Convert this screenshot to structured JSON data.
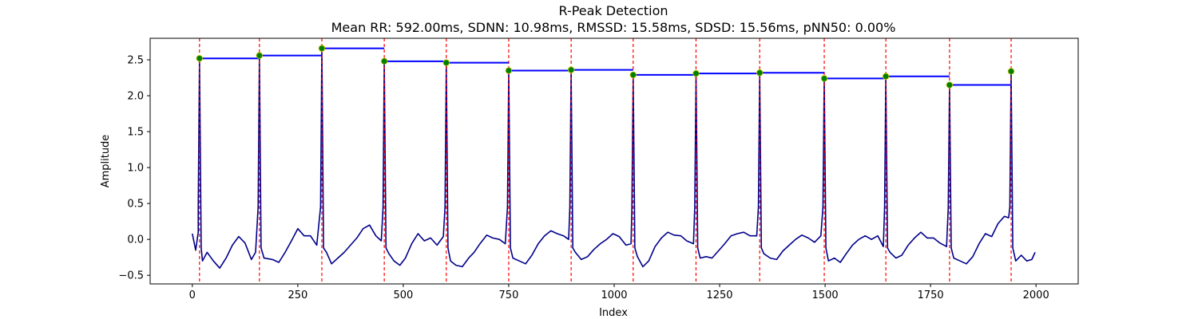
{
  "chart_data": {
    "type": "line",
    "title": "R-Peak Detection",
    "subtitle": "Mean RR: 592.00ms, SDNN: 10.98ms, RMSSD: 15.58ms, SDSD: 15.56ms, pNN50: 0.00%",
    "xlabel": "Index",
    "ylabel": "Amplitude",
    "xlim": [
      -100,
      2100
    ],
    "ylim": [
      -0.62,
      2.8
    ],
    "x_ticks": [
      0,
      250,
      500,
      750,
      1000,
      1250,
      1500,
      1750,
      2000
    ],
    "x_tick_labels": [
      "0",
      "250",
      "500",
      "750",
      "1000",
      "1250",
      "1500",
      "1750",
      "2000"
    ],
    "y_ticks": [
      -0.5,
      0.0,
      0.5,
      1.0,
      1.5,
      2.0,
      2.5
    ],
    "y_tick_labels": [
      "−0.5",
      "0.0",
      "0.5",
      "1.0",
      "1.5",
      "2.0",
      "2.5"
    ],
    "grid": false,
    "colors": {
      "signal": "#00008b",
      "peak_line": "#ff0000",
      "peak_marker": "#008000",
      "rr_bar": "#0000ff"
    },
    "peaks": {
      "x": [
        17,
        159,
        307,
        455,
        602,
        750,
        898,
        1045,
        1194,
        1345,
        1498,
        1644,
        1795,
        1941
      ],
      "y": [
        2.52,
        2.56,
        2.66,
        2.48,
        2.46,
        2.35,
        2.36,
        2.29,
        2.31,
        2.32,
        2.24,
        2.27,
        2.15,
        2.34
      ]
    },
    "signal_baseline": [
      [
        0,
        0.08
      ],
      [
        8,
        -0.15
      ],
      [
        14,
        0.1
      ],
      [
        24,
        -0.3
      ],
      [
        35,
        -0.18
      ],
      [
        50,
        -0.3
      ],
      [
        65,
        -0.4
      ],
      [
        80,
        -0.26
      ],
      [
        95,
        -0.08
      ],
      [
        110,
        0.04
      ],
      [
        125,
        -0.05
      ],
      [
        140,
        -0.28
      ],
      [
        150,
        -0.18
      ],
      [
        170,
        -0.26
      ],
      [
        190,
        -0.28
      ],
      [
        205,
        -0.32
      ],
      [
        220,
        -0.18
      ],
      [
        235,
        -0.02
      ],
      [
        250,
        0.15
      ],
      [
        265,
        0.05
      ],
      [
        280,
        0.05
      ],
      [
        295,
        -0.08
      ],
      [
        318,
        -0.18
      ],
      [
        330,
        -0.34
      ],
      [
        345,
        -0.26
      ],
      [
        360,
        -0.18
      ],
      [
        375,
        -0.08
      ],
      [
        390,
        0.02
      ],
      [
        405,
        0.15
      ],
      [
        420,
        0.2
      ],
      [
        435,
        0.05
      ],
      [
        448,
        -0.02
      ],
      [
        466,
        -0.2
      ],
      [
        478,
        -0.3
      ],
      [
        492,
        -0.36
      ],
      [
        505,
        -0.26
      ],
      [
        520,
        -0.06
      ],
      [
        535,
        0.08
      ],
      [
        550,
        -0.02
      ],
      [
        565,
        0.02
      ],
      [
        580,
        -0.08
      ],
      [
        595,
        0.04
      ],
      [
        612,
        -0.3
      ],
      [
        625,
        -0.36
      ],
      [
        640,
        -0.38
      ],
      [
        655,
        -0.26
      ],
      [
        668,
        -0.18
      ],
      [
        682,
        -0.06
      ],
      [
        698,
        0.06
      ],
      [
        712,
        0.02
      ],
      [
        728,
        0.0
      ],
      [
        742,
        -0.06
      ],
      [
        760,
        -0.26
      ],
      [
        775,
        -0.3
      ],
      [
        790,
        -0.34
      ],
      [
        805,
        -0.22
      ],
      [
        820,
        -0.06
      ],
      [
        835,
        0.05
      ],
      [
        850,
        0.12
      ],
      [
        865,
        0.08
      ],
      [
        880,
        0.05
      ],
      [
        892,
        0.0
      ],
      [
        908,
        -0.18
      ],
      [
        922,
        -0.28
      ],
      [
        937,
        -0.24
      ],
      [
        952,
        -0.14
      ],
      [
        967,
        -0.06
      ],
      [
        982,
        0.0
      ],
      [
        997,
        0.08
      ],
      [
        1012,
        0.04
      ],
      [
        1028,
        -0.08
      ],
      [
        1040,
        -0.06
      ],
      [
        1055,
        -0.24
      ],
      [
        1068,
        -0.38
      ],
      [
        1082,
        -0.3
      ],
      [
        1097,
        -0.1
      ],
      [
        1112,
        0.02
      ],
      [
        1127,
        0.1
      ],
      [
        1142,
        0.06
      ],
      [
        1158,
        0.05
      ],
      [
        1172,
        -0.02
      ],
      [
        1188,
        -0.06
      ],
      [
        1204,
        -0.26
      ],
      [
        1218,
        -0.24
      ],
      [
        1232,
        -0.26
      ],
      [
        1247,
        -0.16
      ],
      [
        1262,
        -0.06
      ],
      [
        1277,
        0.05
      ],
      [
        1292,
        0.08
      ],
      [
        1307,
        0.1
      ],
      [
        1322,
        0.05
      ],
      [
        1338,
        0.05
      ],
      [
        1355,
        -0.2
      ],
      [
        1370,
        -0.26
      ],
      [
        1385,
        -0.28
      ],
      [
        1400,
        -0.16
      ],
      [
        1415,
        -0.08
      ],
      [
        1430,
        0.0
      ],
      [
        1445,
        0.06
      ],
      [
        1460,
        0.02
      ],
      [
        1475,
        -0.04
      ],
      [
        1490,
        0.05
      ],
      [
        1508,
        -0.3
      ],
      [
        1522,
        -0.26
      ],
      [
        1536,
        -0.32
      ],
      [
        1550,
        -0.2
      ],
      [
        1565,
        -0.08
      ],
      [
        1580,
        0.0
      ],
      [
        1595,
        0.05
      ],
      [
        1610,
        0.0
      ],
      [
        1625,
        0.05
      ],
      [
        1638,
        -0.1
      ],
      [
        1654,
        -0.18
      ],
      [
        1668,
        -0.26
      ],
      [
        1682,
        -0.22
      ],
      [
        1697,
        -0.08
      ],
      [
        1712,
        0.02
      ],
      [
        1727,
        0.1
      ],
      [
        1742,
        0.02
      ],
      [
        1757,
        0.02
      ],
      [
        1772,
        -0.05
      ],
      [
        1788,
        -0.1
      ],
      [
        1805,
        -0.26
      ],
      [
        1820,
        -0.3
      ],
      [
        1835,
        -0.34
      ],
      [
        1850,
        -0.24
      ],
      [
        1865,
        -0.06
      ],
      [
        1880,
        0.08
      ],
      [
        1895,
        0.04
      ],
      [
        1910,
        0.22
      ],
      [
        1925,
        0.32
      ],
      [
        1935,
        0.3
      ],
      [
        1952,
        -0.3
      ],
      [
        1965,
        -0.22
      ],
      [
        1978,
        -0.3
      ],
      [
        1990,
        -0.28
      ],
      [
        1998,
        -0.18
      ]
    ]
  }
}
